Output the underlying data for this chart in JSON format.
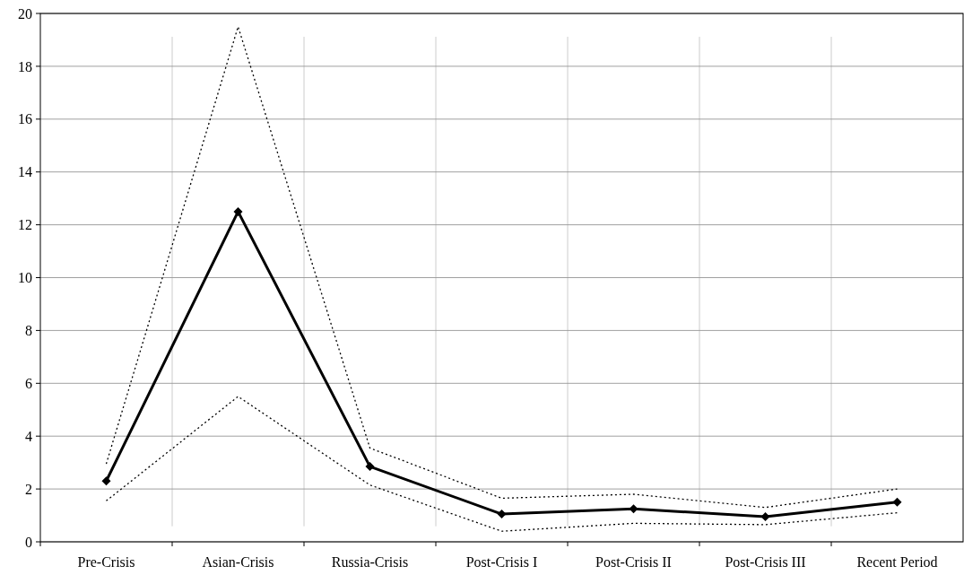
{
  "chart_data": {
    "type": "line",
    "categories": [
      "Pre-Crisis",
      "Asian-Crisis",
      "Russia-Crisis",
      "Post-Crisis I",
      "Post-Crisis II",
      "Post-Crisis III",
      "Recent Period"
    ],
    "series": [
      {
        "color": "#000000",
        "values": [
          2.3,
          12.5,
          2.85,
          1.05,
          1.25,
          0.95,
          1.5
        ],
        "marker": "diamond",
        "line_style": "solid"
      },
      {
        "color": "#000000",
        "values": [
          2.95,
          19.5,
          3.55,
          1.65,
          1.8,
          1.3,
          2.0
        ],
        "marker": "none",
        "line_style": "dotted"
      },
      {
        "color": "#000000",
        "values": [
          1.55,
          5.5,
          2.15,
          0.4,
          0.7,
          0.65,
          1.1
        ],
        "marker": "none",
        "line_style": "dotted"
      }
    ],
    "ylim": [
      0,
      20
    ],
    "yticks": [
      0,
      2,
      4,
      6,
      8,
      10,
      12,
      14,
      16,
      18,
      20
    ],
    "grid": true
  }
}
